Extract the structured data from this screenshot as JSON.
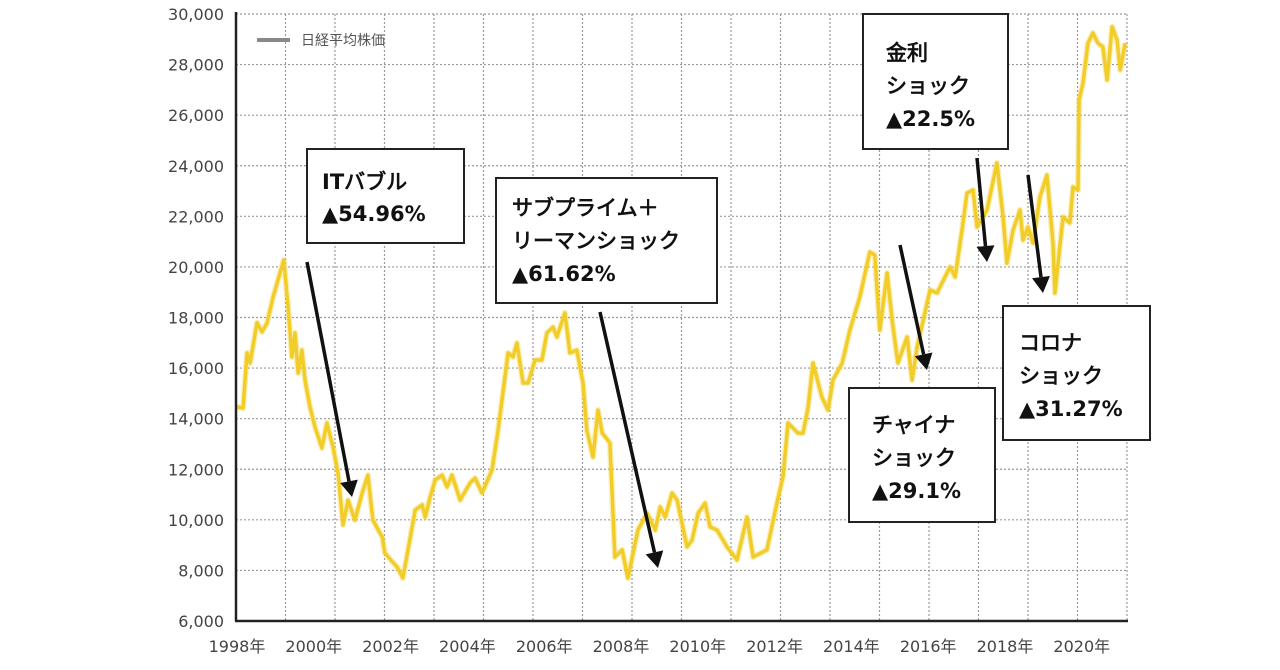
{
  "chart_data": {
    "type": "line",
    "title": "",
    "xlabel": "",
    "ylabel": "",
    "xlim": [
      1998,
      2021.17
    ],
    "ylim": [
      6000,
      30000
    ],
    "grid": true,
    "legend_position": "top-left",
    "x_tick_values": [
      1998,
      2000,
      2002,
      2004,
      2006,
      2008,
      2010,
      2012,
      2014,
      2016,
      2018,
      2020
    ],
    "x_tick_labels": [
      "1998年",
      "2000年",
      "2002年",
      "2004年",
      "2006年",
      "2008年",
      "2010年",
      "2012年",
      "2014年",
      "2016年",
      "2018年",
      "2020年"
    ],
    "y_tick_values": [
      6000,
      8000,
      10000,
      12000,
      14000,
      16000,
      18000,
      20000,
      22000,
      24000,
      26000,
      28000,
      30000
    ],
    "y_tick_labels": [
      "6,000",
      "8,000",
      "10,000",
      "12,000",
      "14,000",
      "16,000",
      "18,000",
      "20,000",
      "22,000",
      "24,000",
      "26,000",
      "28,000",
      "30,000"
    ],
    "series": [
      {
        "name": "日経平均株価",
        "color": "#f2cd2a",
        "legend_color": "#888888",
        "points": [
          [
            1998.0,
            14460
          ],
          [
            1998.16,
            14420
          ],
          [
            1998.26,
            16600
          ],
          [
            1998.34,
            16200
          ],
          [
            1998.52,
            17800
          ],
          [
            1998.65,
            17430
          ],
          [
            1998.78,
            17780
          ],
          [
            1998.94,
            18810
          ],
          [
            1999.12,
            19760
          ],
          [
            1999.22,
            20270
          ],
          [
            1999.33,
            18410
          ],
          [
            1999.43,
            16440
          ],
          [
            1999.51,
            17390
          ],
          [
            1999.59,
            15800
          ],
          [
            1999.69,
            16710
          ],
          [
            1999.77,
            15530
          ],
          [
            1999.9,
            14460
          ],
          [
            2000.03,
            13670
          ],
          [
            2000.21,
            12840
          ],
          [
            2000.34,
            13830
          ],
          [
            2000.5,
            12880
          ],
          [
            2000.63,
            11850
          ],
          [
            2000.76,
            9800
          ],
          [
            2000.89,
            10780
          ],
          [
            2001.07,
            9990
          ],
          [
            2001.26,
            11060
          ],
          [
            2001.41,
            11770
          ],
          [
            2001.54,
            9990
          ],
          [
            2001.78,
            9320
          ],
          [
            2001.85,
            8690
          ],
          [
            2002.17,
            8130
          ],
          [
            2002.32,
            7700
          ],
          [
            2002.64,
            10390
          ],
          [
            2002.82,
            10590
          ],
          [
            2002.9,
            10110
          ],
          [
            2003.03,
            10900
          ],
          [
            2003.16,
            11570
          ],
          [
            2003.34,
            11770
          ],
          [
            2003.47,
            11300
          ],
          [
            2003.6,
            11770
          ],
          [
            2003.81,
            10780
          ],
          [
            2004.07,
            11460
          ],
          [
            2004.2,
            11650
          ],
          [
            2004.38,
            11060
          ],
          [
            2004.64,
            11970
          ],
          [
            2004.8,
            13550
          ],
          [
            2005.06,
            16600
          ],
          [
            2005.19,
            16440
          ],
          [
            2005.29,
            16990
          ],
          [
            2005.45,
            15410
          ],
          [
            2005.58,
            15410
          ],
          [
            2005.76,
            16320
          ],
          [
            2005.94,
            16320
          ],
          [
            2006.07,
            17390
          ],
          [
            2006.23,
            17620
          ],
          [
            2006.33,
            17230
          ],
          [
            2006.54,
            18180
          ],
          [
            2006.67,
            16600
          ],
          [
            2006.85,
            16710
          ],
          [
            2007.01,
            15410
          ],
          [
            2007.11,
            13550
          ],
          [
            2007.27,
            12480
          ],
          [
            2007.4,
            14340
          ],
          [
            2007.51,
            13430
          ],
          [
            2007.71,
            13040
          ],
          [
            2007.84,
            8530
          ],
          [
            2008.03,
            8810
          ],
          [
            2008.18,
            7700
          ],
          [
            2008.44,
            9600
          ],
          [
            2008.68,
            10270
          ],
          [
            2008.89,
            9600
          ],
          [
            2009.02,
            10510
          ],
          [
            2009.15,
            10110
          ],
          [
            2009.33,
            11060
          ],
          [
            2009.46,
            10780
          ],
          [
            2009.72,
            8930
          ],
          [
            2009.85,
            9200
          ],
          [
            2010.01,
            10270
          ],
          [
            2010.19,
            10660
          ],
          [
            2010.32,
            9720
          ],
          [
            2010.5,
            9600
          ],
          [
            2010.76,
            8930
          ],
          [
            2011.02,
            8410
          ],
          [
            2011.28,
            10110
          ],
          [
            2011.44,
            8530
          ],
          [
            2011.8,
            8810
          ],
          [
            2012.06,
            10660
          ],
          [
            2012.22,
            11700
          ],
          [
            2012.35,
            13830
          ],
          [
            2012.61,
            13430
          ],
          [
            2012.74,
            13430
          ],
          [
            2012.87,
            14420
          ],
          [
            2013.0,
            16200
          ],
          [
            2013.23,
            14860
          ],
          [
            2013.39,
            14340
          ],
          [
            2013.52,
            15530
          ],
          [
            2013.76,
            16200
          ],
          [
            2013.96,
            17500
          ],
          [
            2014.22,
            18810
          ],
          [
            2014.48,
            20590
          ],
          [
            2014.61,
            20470
          ],
          [
            2014.74,
            17500
          ],
          [
            2014.93,
            19760
          ],
          [
            2015.06,
            17900
          ],
          [
            2015.21,
            16200
          ],
          [
            2015.45,
            17230
          ],
          [
            2015.58,
            15530
          ],
          [
            2015.71,
            16830
          ],
          [
            2016.05,
            19090
          ],
          [
            2016.23,
            18970
          ],
          [
            2016.57,
            20000
          ],
          [
            2016.7,
            19600
          ],
          [
            2016.88,
            21460
          ],
          [
            2017.01,
            22920
          ],
          [
            2017.17,
            23040
          ],
          [
            2017.27,
            21580
          ],
          [
            2017.53,
            22250
          ],
          [
            2017.79,
            24110
          ],
          [
            2017.95,
            21970
          ],
          [
            2018.05,
            20150
          ],
          [
            2018.21,
            21460
          ],
          [
            2018.39,
            22250
          ],
          [
            2018.47,
            21060
          ],
          [
            2018.6,
            21580
          ],
          [
            2018.73,
            20940
          ],
          [
            2018.91,
            22760
          ],
          [
            2019.09,
            23630
          ],
          [
            2019.25,
            20940
          ],
          [
            2019.3,
            18970
          ],
          [
            2019.51,
            21970
          ],
          [
            2019.69,
            21740
          ],
          [
            2019.77,
            23160
          ],
          [
            2019.9,
            23040
          ],
          [
            2019.93,
            26600
          ],
          [
            2020.03,
            27270
          ],
          [
            2020.16,
            28850
          ],
          [
            2020.29,
            29250
          ],
          [
            2020.42,
            28850
          ],
          [
            2020.55,
            28700
          ],
          [
            2020.66,
            27390
          ],
          [
            2020.79,
            29490
          ],
          [
            2020.92,
            28970
          ],
          [
            2021.0,
            27790
          ],
          [
            2021.13,
            28850
          ]
        ]
      }
    ],
    "annotations": [
      {
        "id": "it-bubble",
        "lines": [
          "ITバブル",
          "▲54.96%"
        ]
      },
      {
        "id": "subprime-lehman",
        "lines": [
          "サブプライム＋",
          "リーマンショック",
          "▲61.62%"
        ]
      },
      {
        "id": "rate-shock",
        "lines": [
          "金利",
          "ショック",
          "▲22.5%"
        ]
      },
      {
        "id": "china-shock",
        "lines": [
          "チャイナ",
          "ショック",
          "▲29.1%"
        ]
      },
      {
        "id": "corona-shock",
        "lines": [
          "コロナ",
          "ショック",
          "▲31.27%"
        ]
      }
    ]
  }
}
